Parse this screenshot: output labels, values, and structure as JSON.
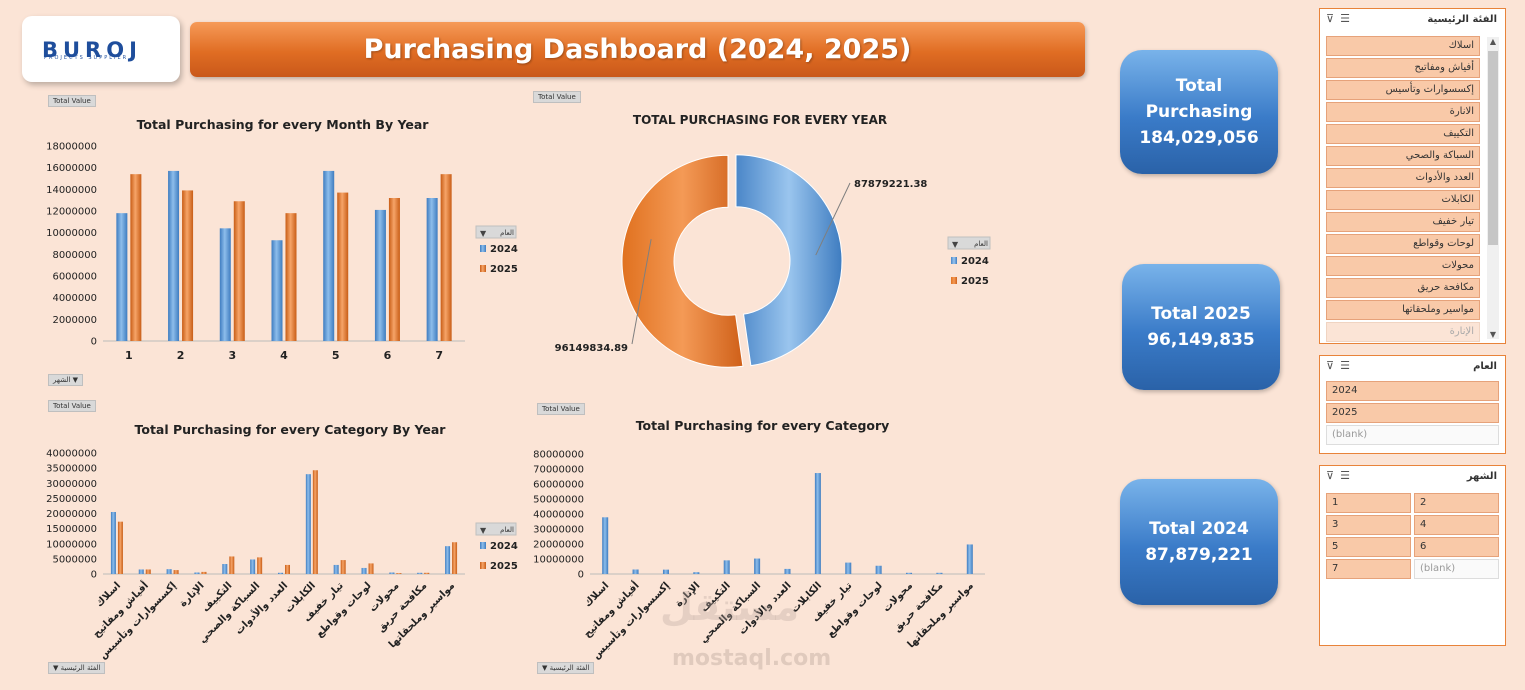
{
  "logo": {
    "name": "BUROJ",
    "tagline": "PROJECTS SUPPLIER"
  },
  "title": "Purchasing Dashboard (2024, 2025)",
  "field_buttons": {
    "total_value": "Total Value",
    "month": "الشهر",
    "category": "الفئة الرئيسية",
    "year": "العام"
  },
  "kpis": [
    {
      "label": "Total Purchasing",
      "value": "184,029,056"
    },
    {
      "label": "Total 2025",
      "value": "96,149,835"
    },
    {
      "label": "Total 2024",
      "value": "87,879,221"
    }
  ],
  "colors": {
    "y2024": "#5b9bd5",
    "y2025": "#ed7d31"
  },
  "chart_data": [
    {
      "id": "month",
      "type": "bar",
      "title": "Total Purchasing for every Month By Year",
      "categories": [
        "1",
        "2",
        "3",
        "4",
        "5",
        "6",
        "7"
      ],
      "series": [
        {
          "name": "2024",
          "values": [
            11800000,
            15700000,
            10400000,
            9300000,
            15700000,
            12100000,
            13200000
          ]
        },
        {
          "name": "2025",
          "values": [
            15400000,
            13900000,
            12900000,
            11800000,
            13700000,
            13200000,
            15400000
          ]
        }
      ],
      "ylim": [
        0,
        18000000
      ],
      "yticks": [
        "0",
        "2000000",
        "4000000",
        "6000000",
        "8000000",
        "10000000",
        "12000000",
        "14000000",
        "16000000",
        "18000000"
      ],
      "legend_title": "العام"
    },
    {
      "id": "year",
      "type": "pie",
      "title": "TOTAL PURCHASING FOR EVERY YEAR",
      "labels": [
        "2024",
        "2025"
      ],
      "values": [
        87879221.38,
        96149834.89
      ],
      "data_labels": [
        "87879221.38",
        "96149834.89"
      ],
      "legend_title": "العام"
    },
    {
      "id": "category_year",
      "type": "bar",
      "title": "Total Purchasing for every Category By Year",
      "categories": [
        "اسلاك",
        "أفياش ومفاتيح",
        "إكسسوارات وتأسيس",
        "الإنارة",
        "التكييف",
        "السباكة والصحي",
        "العدد والأدوات",
        "الكابلات",
        "تيار خفيف",
        "لوحات وقواطع",
        "محولات",
        "مكافحة حريق",
        "مواسير وملحقاتها"
      ],
      "series": [
        {
          "name": "2024",
          "values": [
            20500000,
            1500000,
            1600000,
            500000,
            3300000,
            4800000,
            400000,
            33000000,
            3000000,
            2000000,
            500000,
            400000,
            9200000
          ]
        },
        {
          "name": "2025",
          "values": [
            17300000,
            1500000,
            1300000,
            700000,
            5800000,
            5500000,
            3000000,
            34300000,
            4600000,
            3500000,
            300000,
            400000,
            10500000
          ]
        }
      ],
      "ylim": [
        0,
        40000000
      ],
      "yticks": [
        "0",
        "5000000",
        "10000000",
        "15000000",
        "20000000",
        "25000000",
        "30000000",
        "35000000",
        "40000000"
      ],
      "legend_title": "العام"
    },
    {
      "id": "category",
      "type": "bar",
      "title": "Total Purchasing for every Category",
      "categories": [
        "اسلاك",
        "أفياش ومفاتيح",
        "إكسسوارات وتأسيس",
        "الإنارة",
        "التكييف",
        "السباكة والصحي",
        "العدد والأدوات",
        "الكابلات",
        "تيار خفيف",
        "لوحات وقواطع",
        "محولات",
        "مكافحة حريق",
        "مواسير وملحقاتها"
      ],
      "series": [
        {
          "name": "Total",
          "values": [
            37800000,
            3000000,
            2900000,
            1200000,
            9100000,
            10300000,
            3400000,
            67300000,
            7600000,
            5500000,
            800000,
            800000,
            19700000
          ]
        }
      ],
      "ylim": [
        0,
        80000000
      ],
      "yticks": [
        "0",
        "10000000",
        "20000000",
        "30000000",
        "40000000",
        "50000000",
        "60000000",
        "70000000",
        "80000000"
      ]
    }
  ],
  "slicers": {
    "category": {
      "title": "الفئة الرئيسية",
      "items": [
        "اسلاك",
        "أفياش ومفاتيح",
        "إكسسوارات وتأسيس",
        "الانارة",
        "التكييف",
        "السباكة والصحي",
        "العدد والأدوات",
        "الكابلات",
        "تيار خفيف",
        "لوحات وقواطع",
        "محولات",
        "مكافحة حريق",
        "مواسير وملحقاتها",
        "الإنارة"
      ]
    },
    "year": {
      "title": "العام",
      "items": [
        "2024",
        "2025",
        "(blank)"
      ]
    },
    "month": {
      "title": "الشهر",
      "items": [
        "1",
        "2",
        "3",
        "4",
        "5",
        "6",
        "7",
        "(blank)"
      ]
    }
  },
  "watermark": {
    "arabic": "مستقل",
    "latin": "mostaql.com"
  }
}
